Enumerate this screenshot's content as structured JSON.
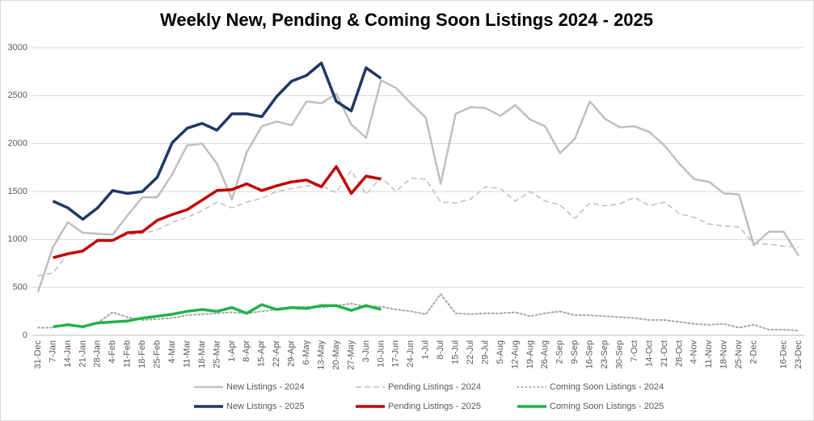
{
  "chart_data": {
    "type": "line",
    "title": "Weekly New, Pending & Coming Soon Listings 2024 - 2025",
    "categories": [
      "31-Dec",
      "7-Jan",
      "14-Jan",
      "21-Jan",
      "28-Jan",
      "4-Feb",
      "11-Feb",
      "18-Feb",
      "25-Feb",
      "4-Mar",
      "11-Mar",
      "18-Mar",
      "25-Mar",
      "1-Apr",
      "8-Apr",
      "15-Apr",
      "22-Apr",
      "29-Apr",
      "6-May",
      "13-May",
      "20-May",
      "27-May",
      "3-Jun",
      "10-Jun",
      "17-Jun",
      "24-Jun",
      "1-Jul",
      "8-Jul",
      "15-Jul",
      "22-Jul",
      "29-Jul",
      "5-Aug",
      "12-Aug",
      "19-Aug",
      "26-Aug",
      "2-Sep",
      "9-Sep",
      "16-Sep",
      "23-Sep",
      "30-Sep",
      "7-Oct",
      "14-Oct",
      "21-Oct",
      "28-Oct",
      "4-Nov",
      "11-Nov",
      "18-Nov",
      "25-Nov",
      "2-Dec",
      null,
      "16-Dec",
      "23-Dec"
    ],
    "series": [
      {
        "name": "New Listings - 2024",
        "color": "#bfbfbf",
        "dash": "solid",
        "width": 2.5,
        "values": [
          450,
          920,
          1180,
          1070,
          1060,
          1050,
          1250,
          1440,
          1440,
          1680,
          1980,
          2000,
          1790,
          1420,
          1910,
          2180,
          2230,
          2190,
          2440,
          2420,
          2520,
          2200,
          2060,
          2660,
          2580,
          2420,
          2270,
          1580,
          2310,
          2380,
          2370,
          2290,
          2400,
          2250,
          2180,
          1900,
          2050,
          2440,
          2260,
          2170,
          2180,
          2120,
          1980,
          1790,
          1630,
          1600,
          1480,
          1470,
          940,
          1080,
          1080,
          830
        ]
      },
      {
        "name": "Pending Listings - 2024",
        "color": "#bfbfbf",
        "dash": "dashed",
        "width": 1.5,
        "values": [
          620,
          650,
          850,
          870,
          980,
          980,
          1050,
          1060,
          1100,
          1180,
          1230,
          1300,
          1390,
          1330,
          1390,
          1430,
          1500,
          1530,
          1560,
          1560,
          1490,
          1720,
          1470,
          1650,
          1500,
          1640,
          1630,
          1390,
          1380,
          1420,
          1550,
          1530,
          1400,
          1500,
          1400,
          1360,
          1220,
          1380,
          1350,
          1370,
          1440,
          1350,
          1390,
          1270,
          1230,
          1160,
          1140,
          1130,
          960,
          950,
          930,
          920
        ]
      },
      {
        "name": "Coming Soon Listings - 2024",
        "color": "#a6a6a6",
        "dash": "dotted",
        "width": 2,
        "values": [
          80,
          80,
          110,
          90,
          130,
          240,
          190,
          160,
          170,
          180,
          210,
          220,
          230,
          240,
          230,
          250,
          270,
          290,
          300,
          290,
          310,
          330,
          300,
          300,
          270,
          250,
          220,
          430,
          230,
          220,
          230,
          230,
          240,
          200,
          230,
          250,
          210,
          210,
          200,
          190,
          180,
          160,
          160,
          140,
          120,
          110,
          120,
          80,
          110,
          60,
          60,
          50
        ]
      },
      {
        "name": "New Listings - 2025",
        "color": "#1f3864",
        "dash": "solid",
        "width": 3.5,
        "values": [
          null,
          1400,
          1330,
          1210,
          1330,
          1510,
          1480,
          1500,
          1650,
          2010,
          2160,
          2210,
          2140,
          2310,
          2310,
          2280,
          2490,
          2650,
          2710,
          2840,
          2440,
          2340,
          2790,
          2680,
          null,
          null,
          null,
          null,
          null,
          null,
          null,
          null,
          null,
          null,
          null,
          null,
          null,
          null,
          null,
          null,
          null,
          null,
          null,
          null,
          null,
          null,
          null,
          null,
          null,
          null,
          null,
          null
        ]
      },
      {
        "name": "Pending Listings - 2025",
        "color": "#c00000",
        "dash": "solid",
        "width": 3.5,
        "values": [
          null,
          810,
          850,
          880,
          990,
          990,
          1070,
          1080,
          1200,
          1260,
          1310,
          1410,
          1510,
          1520,
          1580,
          1510,
          1560,
          1600,
          1620,
          1550,
          1760,
          1480,
          1660,
          1630,
          null,
          null,
          null,
          null,
          null,
          null,
          null,
          null,
          null,
          null,
          null,
          null,
          null,
          null,
          null,
          null,
          null,
          null,
          null,
          null,
          null,
          null,
          null,
          null,
          null,
          null,
          null,
          null
        ]
      },
      {
        "name": "Coming Soon Listings - 2025",
        "color": "#21b14b",
        "dash": "solid",
        "width": 3.5,
        "values": [
          null,
          90,
          110,
          90,
          130,
          140,
          150,
          180,
          200,
          220,
          250,
          270,
          250,
          290,
          230,
          320,
          270,
          290,
          280,
          310,
          310,
          260,
          310,
          270,
          null,
          null,
          null,
          null,
          null,
          null,
          null,
          null,
          null,
          null,
          null,
          null,
          null,
          null,
          null,
          null,
          null,
          null,
          null,
          null,
          null,
          null,
          null,
          null,
          null,
          null,
          null,
          null
        ]
      }
    ],
    "ylim": [
      0,
      3000
    ],
    "yticks": [
      0,
      500,
      1000,
      1500,
      2000,
      2500,
      3000
    ],
    "grid": true,
    "legend": "bottom"
  }
}
